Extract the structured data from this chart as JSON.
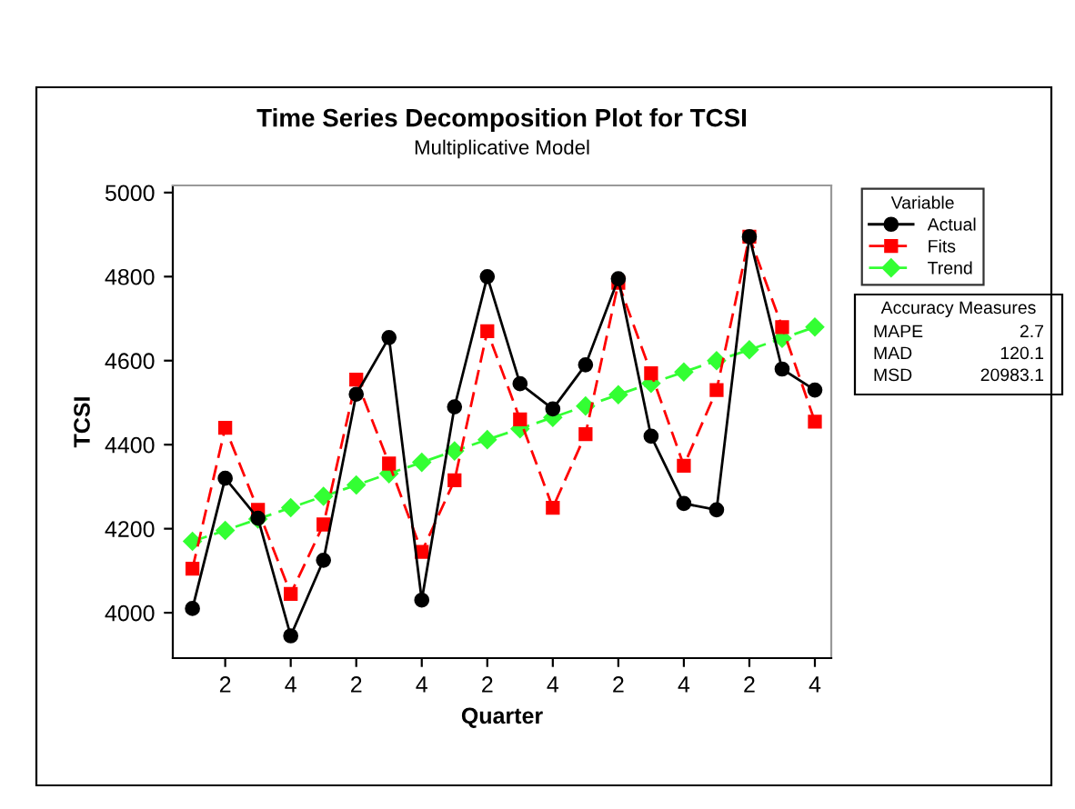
{
  "chart_data": {
    "type": "line",
    "title": "Time Series Decomposition Plot for TCSI",
    "subtitle": "Multiplicative Model",
    "xlabel": "Quarter",
    "ylabel": "TCSI",
    "legend_title": "Variable",
    "categories": [
      null,
      "2",
      null,
      "4",
      null,
      "2",
      null,
      "4",
      null,
      "2",
      null,
      "4",
      null,
      "2",
      null,
      "4",
      null,
      "2",
      null,
      "4"
    ],
    "series": [
      {
        "name": "Actual",
        "color": "#000000",
        "marker": "circle",
        "line_style": "solid",
        "values": [
          4010,
          4320,
          4225,
          3945,
          4125,
          4520,
          4655,
          4030,
          4490,
          4800,
          4545,
          4485,
          4590,
          4795,
          4420,
          4260,
          4245,
          4895,
          4580,
          4530
        ]
      },
      {
        "name": "Fits",
        "color": "#ff0000",
        "marker": "square",
        "line_style": "dashed",
        "values": [
          4105,
          4440,
          4245,
          4045,
          4210,
          4555,
          4355,
          4145,
          4315,
          4670,
          4460,
          4250,
          4425,
          4785,
          4570,
          4350,
          4530,
          4895,
          4680,
          4455
        ]
      },
      {
        "name": "Trend",
        "color": "#33ff33",
        "marker": "diamond",
        "line_style": "dashed",
        "values": [
          4170,
          4196,
          4223,
          4250,
          4277,
          4304,
          4331,
          4358,
          4385,
          4412,
          4438,
          4465,
          4492,
          4519,
          4546,
          4573,
          4600,
          4626,
          4653,
          4680
        ]
      }
    ],
    "ylim": [
      3892,
      5017
    ],
    "yticks": [
      4000,
      4200,
      4400,
      4600,
      4800,
      5000
    ],
    "grid": false,
    "legend": "right",
    "annotations": [
      "Accuracy Measures",
      "MAPE",
      "2.7",
      "MAD",
      "120.1",
      "MSD",
      "20983.1"
    ]
  }
}
